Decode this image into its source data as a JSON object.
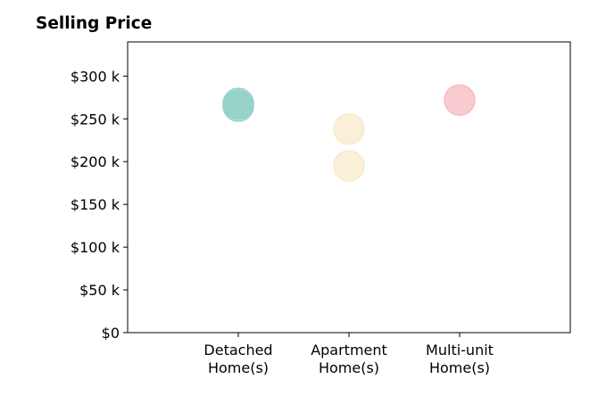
{
  "chart_data": {
    "type": "scatter",
    "title": "Selling Price",
    "xlabel": "",
    "ylabel": "",
    "categories": [
      [
        "Detached",
        "Home(s)"
      ],
      [
        "Apartment",
        "Home(s)"
      ],
      [
        "Multi-unit",
        "Home(s)"
      ]
    ],
    "ylim": [
      0,
      340000
    ],
    "yticks": [
      0,
      50000,
      100000,
      150000,
      200000,
      250000,
      300000
    ],
    "ytick_labels": [
      "$0",
      "$50 k",
      "$100 k",
      "$150 k",
      "$200 k",
      "$250 k",
      "$300 k"
    ],
    "grid": false,
    "points": [
      {
        "category": 0,
        "value": 268000,
        "color": "#8ecfc4"
      },
      {
        "category": 0,
        "value": 265000,
        "color": "#8ecfc4"
      },
      {
        "category": 1,
        "value": 238000,
        "color": "#f8e8c8"
      },
      {
        "category": 1,
        "value": 195000,
        "color": "#f8e8c8"
      },
      {
        "category": 2,
        "value": 272000,
        "color": "#f6b6bd"
      }
    ]
  }
}
